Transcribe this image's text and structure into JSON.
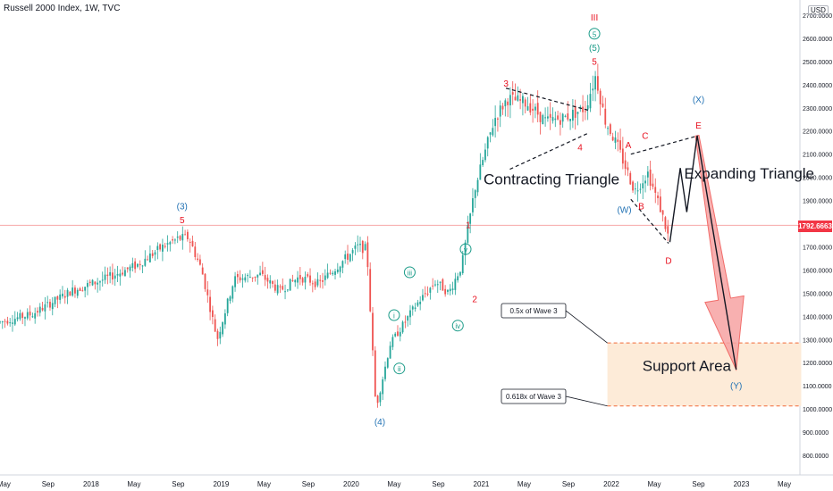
{
  "header": {
    "symbol_title": "Russell 2000 Index, 1W, TVC",
    "currency": "USD"
  },
  "colors": {
    "up": "#26a69a",
    "down": "#ef5350",
    "wave_red": "#e8101f",
    "wave_teal": "#1a9b88",
    "wave_blue": "#2272b4",
    "arrow_fill": "#f7a3a3",
    "support_fill": "#fdebd8",
    "support_border": "#f26a38",
    "current_line": "#f7a8a8"
  },
  "current_price": "1792.6663",
  "chart_data": {
    "type": "line",
    "title": "Russell 2000 Index, 1W, TVC",
    "xlabel": "",
    "ylabel": "",
    "ylim": [
      760,
      2760
    ],
    "x_ticks": [
      "May",
      "Sep",
      "2018",
      "May",
      "Sep",
      "2019",
      "May",
      "Sep",
      "2020",
      "May",
      "Sep",
      "2021",
      "May",
      "Sep",
      "2022",
      "May",
      "Sep",
      "2023",
      "May"
    ],
    "y_ticks": [
      "2700.0000",
      "2600.0000",
      "2500.0000",
      "2400.0000",
      "2300.0000",
      "2200.0000",
      "2100.0000",
      "2000.0000",
      "1900.0000",
      "1800.0000",
      "1700.0000",
      "1600.0000",
      "1500.0000",
      "1400.0000",
      "1300.0000",
      "1200.0000",
      "1100.0000",
      "1000.0000",
      "900.0000",
      "800.0000"
    ],
    "series": [
      {
        "values": [
          [
            2017.3,
            1375
          ],
          [
            2017.55,
            1410
          ],
          [
            2017.85,
            1510
          ],
          [
            2018.1,
            1560
          ],
          [
            2018.35,
            1620
          ],
          [
            2018.55,
            1700
          ],
          [
            2018.67,
            1735
          ],
          [
            2018.75,
            1740
          ],
          [
            2018.85,
            1600
          ],
          [
            2018.97,
            1300
          ],
          [
            2019.1,
            1560
          ],
          [
            2019.3,
            1580
          ],
          [
            2019.45,
            1510
          ],
          [
            2019.6,
            1570
          ],
          [
            2019.75,
            1540
          ],
          [
            2019.9,
            1620
          ],
          [
            2020.05,
            1700
          ],
          [
            2020.12,
            1690
          ],
          [
            2020.19,
            1000
          ],
          [
            2020.3,
            1280
          ],
          [
            2020.5,
            1450
          ],
          [
            2020.65,
            1550
          ],
          [
            2020.75,
            1500
          ],
          [
            2020.85,
            1620
          ],
          [
            2020.95,
            1950
          ],
          [
            2021.1,
            2250
          ],
          [
            2021.2,
            2340
          ],
          [
            2021.35,
            2320
          ],
          [
            2021.5,
            2240
          ],
          [
            2021.65,
            2260
          ],
          [
            2021.8,
            2300
          ],
          [
            2021.88,
            2440
          ],
          [
            2021.95,
            2250
          ],
          [
            2022.05,
            2130
          ],
          [
            2022.18,
            1940
          ],
          [
            2022.28,
            2020
          ],
          [
            2022.38,
            1860
          ],
          [
            2022.45,
            1720
          ]
        ]
      },
      {
        "values": [
          [
            2022.45,
            1720
          ],
          [
            2022.53,
            2040
          ],
          [
            2022.58,
            1850
          ],
          [
            2022.66,
            2180
          ],
          [
            2022.96,
            1170
          ]
        ]
      }
    ],
    "wave_labels": [
      {
        "text": "(3)",
        "x": 2018.7,
        "y": 1875,
        "color": "blue"
      },
      {
        "text": "5",
        "x": 2018.7,
        "y": 1815,
        "color": "red"
      },
      {
        "text": "(4)",
        "x": 2020.22,
        "y": 945,
        "color": "blue"
      },
      {
        "text": "i",
        "x": 2020.33,
        "y": 1405,
        "color": "teal",
        "circled": true
      },
      {
        "text": "ii",
        "x": 2020.37,
        "y": 1175,
        "color": "teal",
        "circled": true
      },
      {
        "text": "iii",
        "x": 2020.45,
        "y": 1590,
        "color": "teal",
        "circled": true
      },
      {
        "text": "iv",
        "x": 2020.82,
        "y": 1360,
        "color": "teal",
        "circled": true
      },
      {
        "text": "v",
        "x": 2020.88,
        "y": 1690,
        "color": "teal",
        "circled": true
      },
      {
        "text": "1",
        "x": 2020.9,
        "y": 1795,
        "color": "red"
      },
      {
        "text": "2",
        "x": 2020.95,
        "y": 1475,
        "color": "red"
      },
      {
        "text": "3",
        "x": 2021.19,
        "y": 2405,
        "color": "red"
      },
      {
        "text": "4",
        "x": 2021.76,
        "y": 2130,
        "color": "red"
      },
      {
        "text": "5",
        "x": 2021.87,
        "y": 2500,
        "color": "red"
      },
      {
        "text": "(5)",
        "x": 2021.87,
        "y": 2560,
        "color": "teal"
      },
      {
        "text": "5",
        "x": 2021.87,
        "y": 2620,
        "color": "teal",
        "circled": true
      },
      {
        "text": "III",
        "x": 2021.87,
        "y": 2690,
        "color": "red"
      },
      {
        "text": "A",
        "x": 2022.13,
        "y": 2140,
        "color": "red"
      },
      {
        "text": "B",
        "x": 2022.23,
        "y": 1875,
        "color": "red"
      },
      {
        "text": "C",
        "x": 2022.26,
        "y": 2180,
        "color": "red"
      },
      {
        "text": "D",
        "x": 2022.44,
        "y": 1640,
        "color": "red"
      },
      {
        "text": "E",
        "x": 2022.67,
        "y": 2225,
        "color": "red"
      },
      {
        "text": "(W)",
        "x": 2022.1,
        "y": 1860,
        "color": "blue"
      },
      {
        "text": "(X)",
        "x": 2022.67,
        "y": 2335,
        "color": "blue"
      },
      {
        "text": "(Y)",
        "x": 2022.96,
        "y": 1100,
        "color": "blue"
      }
    ],
    "annotations": [
      {
        "text": "Contracting Triangle",
        "x": 2021.54,
        "y": 1970
      },
      {
        "text": "Expanding Triangle",
        "x": 2023.06,
        "y": 1995
      },
      {
        "text": "Support Area",
        "x": 2022.58,
        "y": 1165
      }
    ],
    "callouts": [
      "0.5x of Wave 3",
      "0.618x of Wave 3"
    ],
    "support_area": {
      "x_start": 2021.97,
      "x_end": 2023.46,
      "y_low": 1013,
      "y_high": 1285
    },
    "reference_line": 1792.6663
  }
}
